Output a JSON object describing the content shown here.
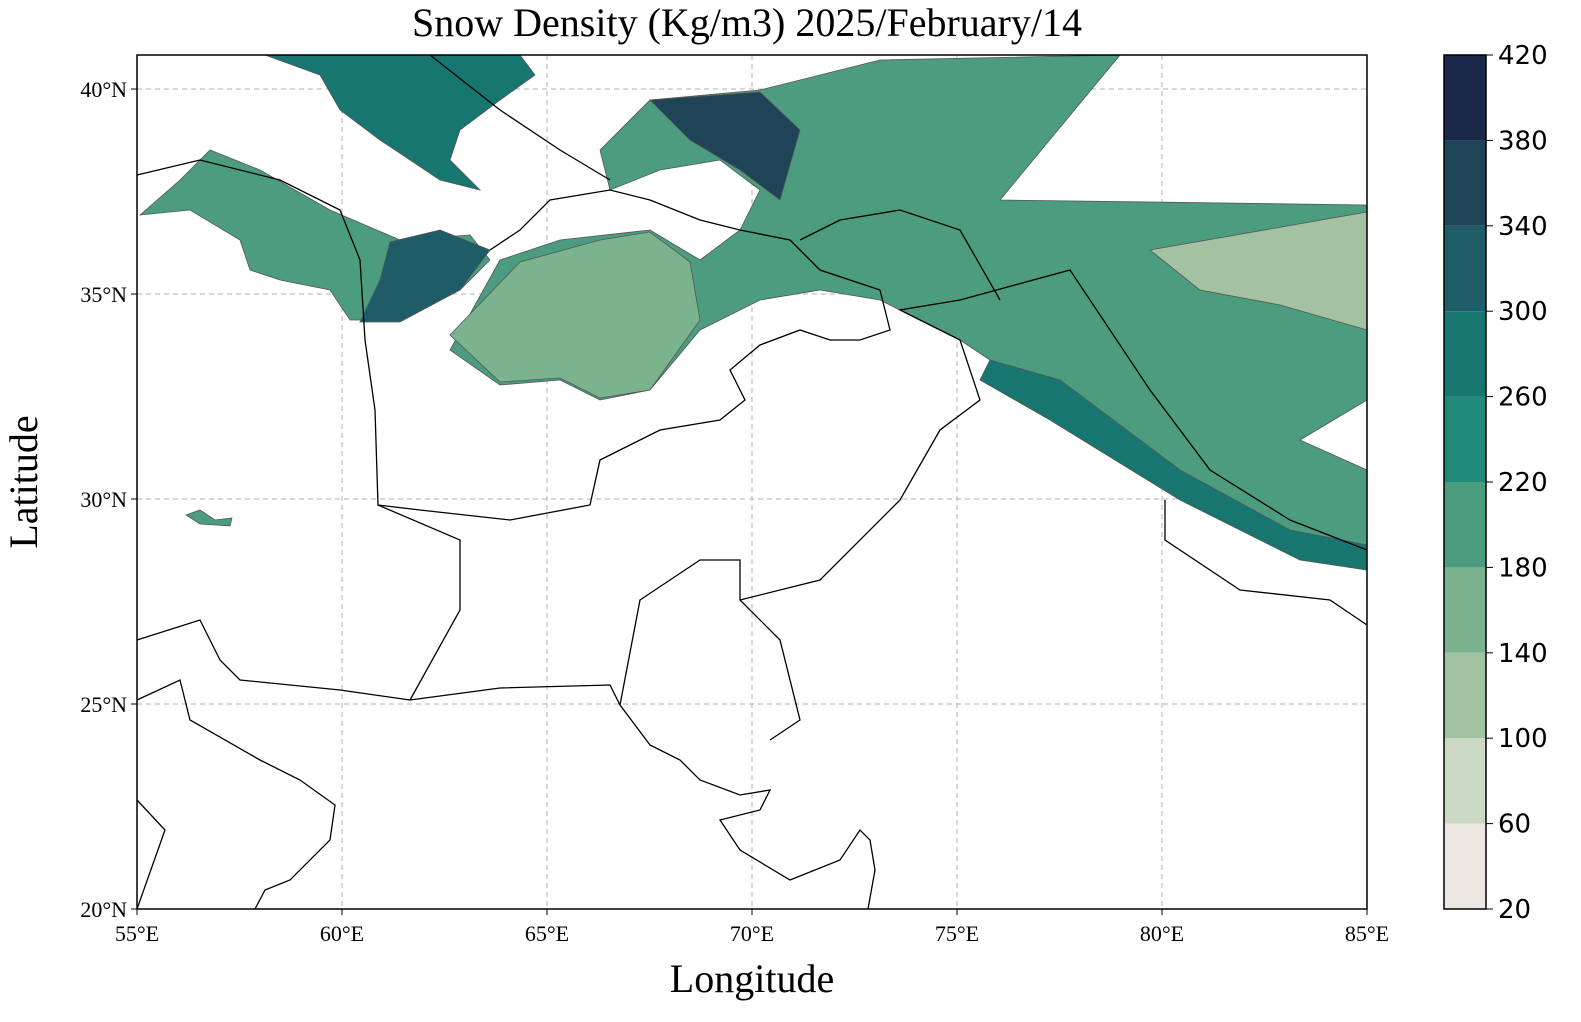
{
  "chart_data": {
    "type": "map",
    "title": "Snow Density (Kg/m3) 2025/February/14",
    "xlabel": "Longitude",
    "ylabel": "Latitude",
    "xlim": [
      55,
      85
    ],
    "ylim": [
      20,
      40.83
    ],
    "xticks": [
      {
        "value": 55,
        "label": "55°E"
      },
      {
        "value": 60,
        "label": "60°E"
      },
      {
        "value": 65,
        "label": "65°E"
      },
      {
        "value": 70,
        "label": "70°E"
      },
      {
        "value": 75,
        "label": "75°E"
      },
      {
        "value": 80,
        "label": "80°E"
      },
      {
        "value": 85,
        "label": "85°E"
      }
    ],
    "yticks": [
      {
        "value": 20,
        "label": "20°N"
      },
      {
        "value": 25,
        "label": "25°N"
      },
      {
        "value": 30,
        "label": "30°N"
      },
      {
        "value": 35,
        "label": "35°N"
      },
      {
        "value": 40,
        "label": "40°N"
      }
    ],
    "grid": true,
    "colorbar": {
      "ticks": [
        20,
        60,
        100,
        140,
        180,
        220,
        260,
        300,
        340,
        380,
        420
      ],
      "colors": [
        "#ece8e1",
        "#cbd8c4",
        "#a3c2a2",
        "#7bb38f",
        "#4c9c80",
        "#1f8a7a",
        "#17766f",
        "#1e5c68",
        "#1f4458",
        "#1b2a4a"
      ]
    }
  }
}
